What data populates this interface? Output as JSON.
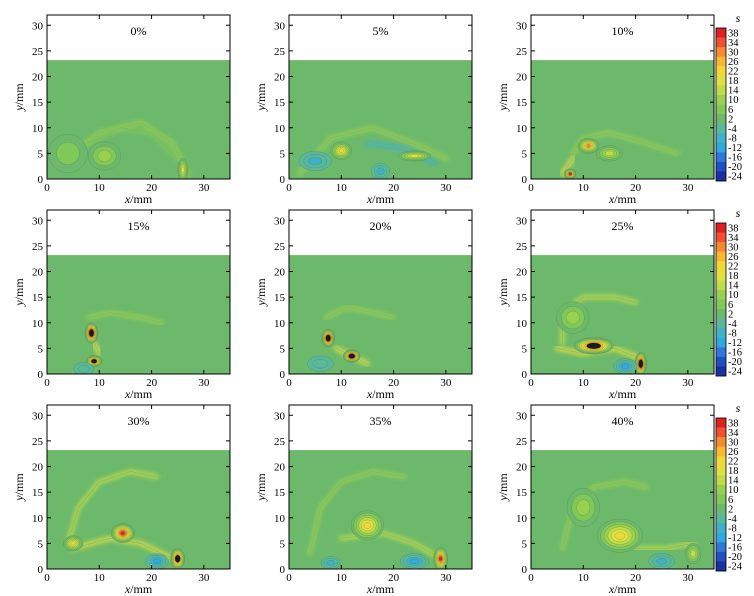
{
  "chart_data": {
    "type": "heatmap",
    "layout": {
      "rows": 3,
      "cols": 3
    },
    "x_axis": {
      "label_var": "x",
      "label_unit": "/mm",
      "range": [
        0,
        35
      ],
      "ticks": [
        0,
        10,
        20,
        30
      ]
    },
    "y_axis": {
      "label_var": "y",
      "label_unit": "/mm",
      "range": [
        0,
        32
      ],
      "ticks": [
        0,
        5,
        10,
        15,
        20,
        25,
        30
      ]
    },
    "white_region_above_y": 23.2,
    "background_color": "#6cb96b",
    "colorbar": {
      "title": "s",
      "levels": [
        "38",
        "34",
        "30",
        "26",
        "22",
        "18",
        "14",
        "10",
        "6",
        "2",
        "-4",
        "-8",
        "-12",
        "-16",
        "-20",
        "-24"
      ],
      "colors": [
        "#e02020",
        "#f05030",
        "#f78a30",
        "#f8b830",
        "#f0d838",
        "#e0e040",
        "#c0dc48",
        "#98d050",
        "#80c858",
        "#6cb96b",
        "#58b89a",
        "#40b0c8",
        "#30a8e0",
        "#3078d8",
        "#2050c0",
        "#1830a0"
      ]
    },
    "panels": [
      {
        "label": "0%",
        "features": [
          {
            "x": 11,
            "y": 4.5,
            "sx": 2.5,
            "sy": 2.2,
            "v": 10
          },
          {
            "x": 26,
            "y": 1.8,
            "sx": 0.8,
            "sy": 1.8,
            "v": 18
          },
          {
            "x": 4,
            "y": 5,
            "sx": 3,
            "sy": 3,
            "v": 6
          }
        ],
        "arcs": [
          {
            "points": [
              [
                4,
                4
              ],
              [
                10,
                9
              ],
              [
                18,
                11
              ],
              [
                24,
                7
              ],
              [
                27,
                1
              ]
            ],
            "v": 8
          },
          {
            "points": [
              [
                8,
                7
              ],
              [
                14,
                10
              ],
              [
                20,
                9
              ],
              [
                25,
                4
              ]
            ],
            "v": 6
          }
        ]
      },
      {
        "label": "5%",
        "features": [
          {
            "x": 10,
            "y": 5.5,
            "sx": 1.6,
            "sy": 1.4,
            "v": 24
          },
          {
            "x": 5,
            "y": 3.5,
            "sx": 2.5,
            "sy": 1.5,
            "v": -12
          },
          {
            "x": 17.5,
            "y": 1.5,
            "sx": 1.4,
            "sy": 1.3,
            "v": -12
          },
          {
            "x": 24,
            "y": 4.5,
            "sx": 2.5,
            "sy": 0.8,
            "v": 18
          }
        ],
        "arcs": [
          {
            "points": [
              [
                2,
                1
              ],
              [
                8,
                8
              ],
              [
                16,
                10
              ],
              [
                26,
                6
              ],
              [
                30,
                4
              ]
            ],
            "v": 10
          },
          {
            "points": [
              [
                15,
                7
              ],
              [
                22,
                6
              ],
              [
                28,
                3
              ]
            ],
            "v": -8
          }
        ]
      },
      {
        "label": "10%",
        "features": [
          {
            "x": 11,
            "y": 6.5,
            "sx": 1.6,
            "sy": 1.2,
            "v": 30
          },
          {
            "x": 7.5,
            "y": 1.0,
            "sx": 0.9,
            "sy": 0.8,
            "v": 40
          },
          {
            "x": 15,
            "y": 5,
            "sx": 2,
            "sy": 1.2,
            "v": 14
          }
        ],
        "arcs": [
          {
            "points": [
              [
                8,
                5
              ],
              [
                10,
                8
              ],
              [
                15,
                9
              ],
              [
                22,
                7
              ],
              [
                28,
                5
              ]
            ],
            "v": 10
          },
          {
            "points": [
              [
                6,
                1
              ],
              [
                8,
                4
              ]
            ],
            "v": 18
          }
        ]
      },
      {
        "label": "15%",
        "features": [
          {
            "x": 8.5,
            "y": 8,
            "sx": 1.0,
            "sy": 1.6,
            "v": 50
          },
          {
            "x": 9,
            "y": 2.5,
            "sx": 1.2,
            "sy": 0.9,
            "v": 44
          },
          {
            "x": 7,
            "y": 1,
            "sx": 1.5,
            "sy": 1,
            "v": -8
          }
        ],
        "arcs": [
          {
            "points": [
              [
                8,
                11
              ],
              [
                12,
                12
              ],
              [
                18,
                11
              ],
              [
                22,
                10
              ]
            ],
            "v": 10
          },
          {
            "points": [
              [
                9,
                6
              ],
              [
                10,
                4
              ]
            ],
            "v": 18
          }
        ]
      },
      {
        "label": "20%",
        "features": [
          {
            "x": 7.5,
            "y": 7,
            "sx": 1.0,
            "sy": 1.4,
            "v": 50
          },
          {
            "x": 12,
            "y": 3.5,
            "sx": 1.3,
            "sy": 1.0,
            "v": 50
          },
          {
            "x": 6,
            "y": 2,
            "sx": 2,
            "sy": 1.2,
            "v": -8
          }
        ],
        "arcs": [
          {
            "points": [
              [
                7,
                11
              ],
              [
                11,
                13
              ],
              [
                16,
                12
              ],
              [
                20,
                11
              ]
            ],
            "v": 10
          },
          {
            "points": [
              [
                9,
                5
              ],
              [
                11,
                4
              ],
              [
                15,
                2
              ]
            ],
            "v": 18
          }
        ]
      },
      {
        "label": "25%",
        "features": [
          {
            "x": 12,
            "y": 5.5,
            "sx": 3,
            "sy": 1.3,
            "v": 44
          },
          {
            "x": 21,
            "y": 2,
            "sx": 0.9,
            "sy": 1.8,
            "v": 50
          },
          {
            "x": 18,
            "y": 1.5,
            "sx": 1.8,
            "sy": 1.2,
            "v": -16
          },
          {
            "x": 8,
            "y": 11,
            "sx": 2.5,
            "sy": 2.5,
            "v": 10
          }
        ],
        "arcs": [
          {
            "points": [
              [
                6,
                6
              ],
              [
                6,
                12
              ],
              [
                10,
                15
              ],
              [
                16,
                15
              ],
              [
                20,
                14
              ]
            ],
            "v": 14
          },
          {
            "points": [
              [
                5,
                5
              ],
              [
                10,
                4
              ],
              [
                16,
                5
              ],
              [
                21,
                3
              ]
            ],
            "v": 18
          }
        ]
      },
      {
        "label": "30%",
        "features": [
          {
            "x": 14.5,
            "y": 7,
            "sx": 1.8,
            "sy": 1.5,
            "v": 40
          },
          {
            "x": 25,
            "y": 2,
            "sx": 1.1,
            "sy": 1.6,
            "v": 44
          },
          {
            "x": 21,
            "y": 1.5,
            "sx": 1.8,
            "sy": 1.2,
            "v": -14
          },
          {
            "x": 5,
            "y": 5,
            "sx": 1.5,
            "sy": 1.2,
            "v": 22
          }
        ],
        "arcs": [
          {
            "points": [
              [
                4,
                5
              ],
              [
                6,
                12
              ],
              [
                10,
                17
              ],
              [
                16,
                19
              ],
              [
                21,
                18
              ]
            ],
            "v": 14
          },
          {
            "points": [
              [
                5,
                4
              ],
              [
                12,
                6
              ],
              [
                18,
                5
              ],
              [
                24,
                2
              ]
            ],
            "v": 18
          }
        ]
      },
      {
        "label": "35%",
        "features": [
          {
            "x": 15,
            "y": 8.5,
            "sx": 2.5,
            "sy": 2.3,
            "v": 22
          },
          {
            "x": 29,
            "y": 2,
            "sx": 1.1,
            "sy": 1.8,
            "v": 38
          },
          {
            "x": 24,
            "y": 1.5,
            "sx": 2.2,
            "sy": 1.2,
            "v": -14
          },
          {
            "x": 8,
            "y": 1.2,
            "sx": 1.5,
            "sy": 1,
            "v": -10
          }
        ],
        "arcs": [
          {
            "points": [
              [
                4,
                3
              ],
              [
                6,
                12
              ],
              [
                10,
                17
              ],
              [
                16,
                19
              ],
              [
                22,
                18
              ]
            ],
            "v": 10
          },
          {
            "points": [
              [
                10,
                6
              ],
              [
                18,
                7
              ],
              [
                24,
                5
              ],
              [
                29,
                2
              ]
            ],
            "v": 14
          }
        ]
      },
      {
        "label": "40%",
        "features": [
          {
            "x": 17,
            "y": 6.5,
            "sx": 3.5,
            "sy": 2.6,
            "v": 22
          },
          {
            "x": 25,
            "y": 1.5,
            "sx": 2,
            "sy": 1.2,
            "v": -12
          },
          {
            "x": 10,
            "y": 12,
            "sx": 2.5,
            "sy": 3,
            "v": 10
          },
          {
            "x": 31,
            "y": 3,
            "sx": 1.2,
            "sy": 1.6,
            "v": 16
          }
        ],
        "arcs": [
          {
            "points": [
              [
                6,
                4
              ],
              [
                8,
                12
              ],
              [
                12,
                16
              ],
              [
                18,
                17
              ],
              [
                22,
                16
              ]
            ],
            "v": 8
          },
          {
            "points": [
              [
                20,
                4
              ],
              [
                26,
                4
              ],
              [
                31,
                5
              ]
            ],
            "v": 14
          }
        ]
      }
    ]
  }
}
